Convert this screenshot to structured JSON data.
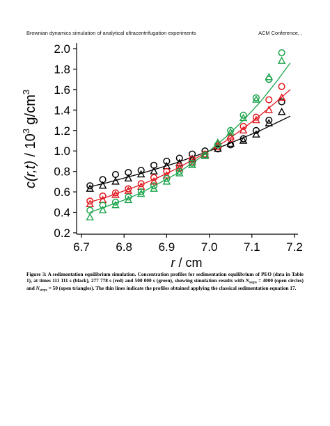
{
  "header": {
    "left": "Brownian dynamics simulation of analytical ultracentrifugation experiments",
    "right": "ACM Conference, ."
  },
  "chart_data": {
    "type": "scatter",
    "xlabel": [
      "r",
      " / cm"
    ],
    "ylabel": [
      "c(r,t)",
      "  /  10",
      "3",
      " g/cm",
      "3"
    ],
    "xlim": [
      6.7,
      7.2
    ],
    "ylim": [
      0.2,
      2.0
    ],
    "xticks": [
      6.7,
      6.8,
      6.9,
      {
        "value": 7,
        "label": "7.0"
      },
      7.1,
      7.2
    ],
    "yticks": [
      0.2,
      0.4,
      0.6,
      0.8,
      {
        "value": 1,
        "label": "1.0"
      },
      1.2,
      1.4,
      1.6,
      1.8,
      {
        "value": 2,
        "label": "2.0"
      }
    ],
    "series": [
      {
        "marker": "line",
        "color": "#000000",
        "x": [
          6.72,
          6.76,
          6.8,
          6.84,
          6.88,
          6.92,
          6.96,
          7.0,
          7.04,
          7.08,
          7.12,
          7.16,
          7.19
        ],
        "values": [
          0.65,
          0.69,
          0.735,
          0.78,
          0.83,
          0.88,
          0.94,
          1.0,
          1.06,
          1.13,
          1.2,
          1.28,
          1.34
        ]
      },
      {
        "marker": "line",
        "color": "#e0191f",
        "x": [
          6.72,
          6.76,
          6.8,
          6.84,
          6.88,
          6.92,
          6.96,
          7.0,
          7.04,
          7.08,
          7.12,
          7.16,
          7.19
        ],
        "values": [
          0.5,
          0.55,
          0.61,
          0.67,
          0.74,
          0.82,
          0.91,
          1.0,
          1.1,
          1.22,
          1.35,
          1.49,
          1.6
        ]
      },
      {
        "marker": "line",
        "color": "#1aa34a",
        "x": [
          6.72,
          6.76,
          6.8,
          6.84,
          6.88,
          6.92,
          6.96,
          7.0,
          7.04,
          7.08,
          7.12,
          7.16,
          7.19
        ],
        "values": [
          0.4,
          0.46,
          0.52,
          0.59,
          0.68,
          0.77,
          0.88,
          1.0,
          1.14,
          1.3,
          1.48,
          1.69,
          1.86
        ]
      },
      {
        "marker": "circle",
        "color": "#000000",
        "x": [
          6.72,
          6.75,
          6.78,
          6.81,
          6.84,
          6.87,
          6.9,
          6.93,
          6.96,
          6.99,
          7.02,
          7.05,
          7.08,
          7.11,
          7.14,
          7.17
        ],
        "values": [
          0.66,
          0.72,
          0.77,
          0.79,
          0.81,
          0.86,
          0.9,
          0.93,
          0.97,
          1.0,
          1.02,
          1.06,
          1.12,
          1.2,
          1.3,
          1.48
        ]
      },
      {
        "marker": "triangle",
        "color": "#000000",
        "x": [
          6.72,
          6.75,
          6.78,
          6.81,
          6.84,
          6.87,
          6.9,
          6.93,
          6.96,
          6.99,
          7.02,
          7.05,
          7.08,
          7.11,
          7.14,
          7.17
        ],
        "values": [
          0.63,
          0.66,
          0.7,
          0.73,
          0.77,
          0.8,
          0.85,
          0.88,
          0.92,
          0.96,
          1.02,
          1.07,
          1.1,
          1.16,
          1.27,
          1.38
        ]
      },
      {
        "marker": "circle",
        "color": "#e0191f",
        "x": [
          6.72,
          6.75,
          6.78,
          6.81,
          6.84,
          6.87,
          6.9,
          6.93,
          6.96,
          6.99,
          7.02,
          7.05,
          7.08,
          7.11,
          7.14,
          7.17
        ],
        "values": [
          0.51,
          0.56,
          0.59,
          0.63,
          0.68,
          0.74,
          0.8,
          0.85,
          0.92,
          0.97,
          1.04,
          1.12,
          1.24,
          1.33,
          1.5,
          1.63
        ]
      },
      {
        "marker": "triangle",
        "color": "#e0191f",
        "x": [
          6.72,
          6.75,
          6.78,
          6.81,
          6.84,
          6.87,
          6.9,
          6.93,
          6.96,
          6.99,
          7.02,
          7.05,
          7.08,
          7.11,
          7.14,
          7.17
        ],
        "values": [
          0.48,
          0.52,
          0.57,
          0.61,
          0.65,
          0.7,
          0.76,
          0.83,
          0.89,
          0.96,
          1.06,
          1.14,
          1.2,
          1.3,
          1.4,
          1.52
        ]
      },
      {
        "marker": "circle",
        "color": "#1aa34a",
        "x": [
          6.72,
          6.75,
          6.78,
          6.81,
          6.84,
          6.87,
          6.9,
          6.93,
          6.96,
          6.99,
          7.02,
          7.05,
          7.08,
          7.11,
          7.14,
          7.17
        ],
        "values": [
          0.42,
          0.47,
          0.5,
          0.55,
          0.6,
          0.66,
          0.73,
          0.8,
          0.88,
          0.96,
          1.06,
          1.2,
          1.35,
          1.52,
          1.7,
          1.96
        ]
      },
      {
        "marker": "triangle",
        "color": "#1aa34a",
        "x": [
          6.72,
          6.75,
          6.78,
          6.81,
          6.84,
          6.87,
          6.9,
          6.93,
          6.96,
          6.99,
          7.02,
          7.05,
          7.08,
          7.11,
          7.14,
          7.17
        ],
        "values": [
          0.35,
          0.42,
          0.47,
          0.52,
          0.58,
          0.63,
          0.7,
          0.78,
          0.86,
          0.95,
          1.08,
          1.18,
          1.32,
          1.5,
          1.72,
          1.88
        ]
      }
    ]
  },
  "caption": [
    "Figure 3: A sedimentation equilibrium simulation. Concentration profiles for sedimentation equilibrium of PEO (data in Table 1), at times 111 111 s (black), 277 778 s (red) and 500 000 s (green), showing simulation results with ",
    "N",
    "steps",
    " = 4000 (open circles) and ",
    "N",
    "steps",
    " = 50 (open triangles). The thin lines indicate the profiles obtained applying the classical sedimentation equation 17."
  ]
}
